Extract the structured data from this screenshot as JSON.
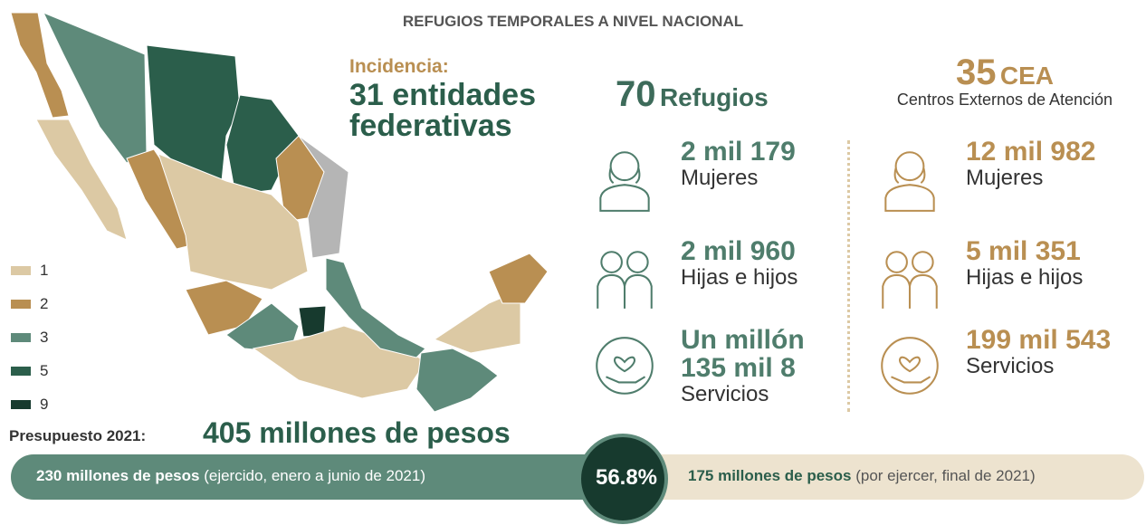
{
  "header": {
    "title": "REFUGIOS TEMPORALES A NIVEL NACIONAL"
  },
  "incidence": {
    "label": "Incidencia:",
    "value": "31 entidades federativas"
  },
  "refugios": {
    "number": "70",
    "label": "Refugios",
    "stats": [
      {
        "value": "2 mil 179",
        "label": "Mujeres"
      },
      {
        "value": "2 mil 960",
        "label": "Hijas e hijos"
      },
      {
        "value": "Un millón 135 mil 8",
        "label": "Servicios"
      }
    ]
  },
  "cea": {
    "number": "35",
    "label": "CEA",
    "subtitle": "Centros Externos de Atención",
    "stats": [
      {
        "value": "12 mil 982",
        "label": "Mujeres"
      },
      {
        "value": "5 mil 351",
        "label": "Hijas e hijos"
      },
      {
        "value": "199 mil 543",
        "label": "Servicios"
      }
    ]
  },
  "legend": [
    {
      "label": "1",
      "color": "#dcc9a4"
    },
    {
      "label": "2",
      "color": "#b98f52"
    },
    {
      "label": "3",
      "color": "#5e8a7a"
    },
    {
      "label": "5",
      "color": "#2b5e4b"
    },
    {
      "label": "9",
      "color": "#173a2e"
    }
  ],
  "budget": {
    "label": "Presupuesto 2021:",
    "total": "405 millones de pesos",
    "spent": "230 millones de pesos",
    "spent_note": "(ejercido, enero a junio de 2021)",
    "percent": "56.8%",
    "remaining": "175 millones de pesos",
    "remaining_note": "(por ejercer, final de 2021)"
  }
}
